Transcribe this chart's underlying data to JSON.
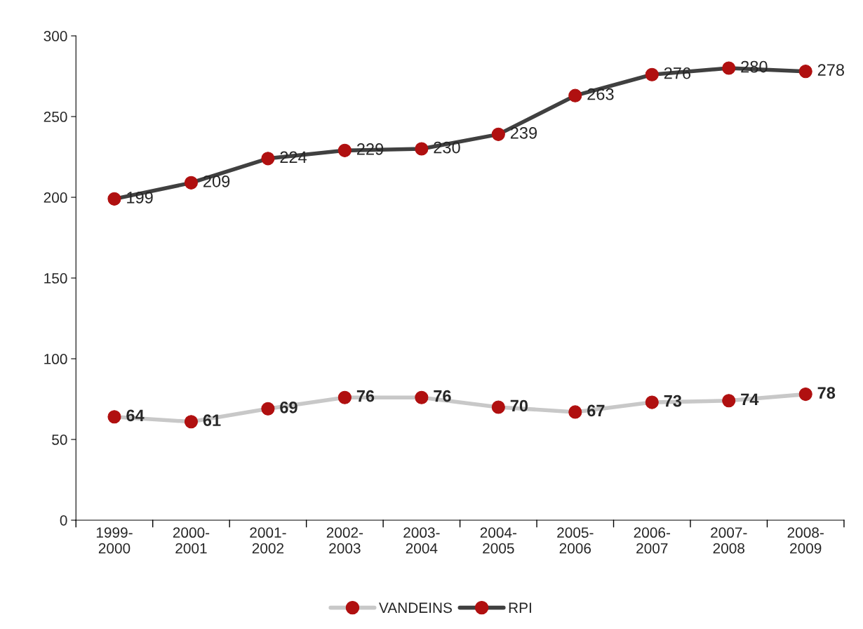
{
  "chart_data": {
    "type": "line",
    "categories": [
      "1999-\n2000",
      "2000-\n2001",
      "2001-\n2002",
      "2002-\n2003",
      "2003-\n2004",
      "2004-\n2005",
      "2005-\n2006",
      "2006-\n2007",
      "2007-\n2008",
      "2008-\n2009"
    ],
    "series": [
      {
        "name": "VANDEINS",
        "color": "#c8c8c8",
        "values": [
          64,
          61,
          69,
          76,
          76,
          70,
          67,
          73,
          74,
          78
        ]
      },
      {
        "name": "RPI",
        "color": "#404040",
        "values": [
          199,
          209,
          224,
          229,
          230,
          239,
          263,
          276,
          280,
          278
        ]
      }
    ],
    "ylim": [
      0,
      300
    ],
    "yticks": [
      0,
      50,
      100,
      150,
      200,
      250,
      300
    ],
    "data_labels": true,
    "marker": "circle",
    "line_style": "solid",
    "grid": false,
    "legend": "bottom"
  }
}
